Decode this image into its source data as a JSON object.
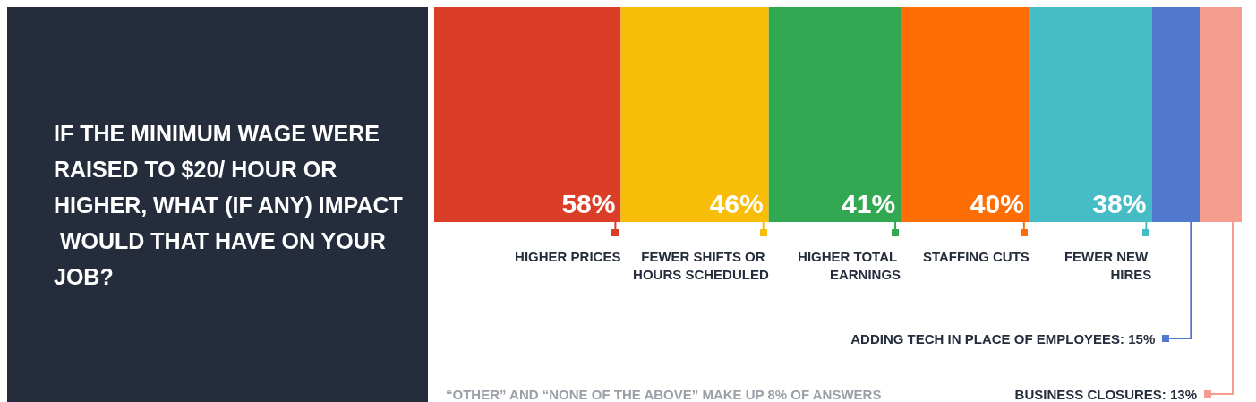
{
  "chart_data": {
    "type": "bar",
    "orientation": "horizontal",
    "stacked": true,
    "title": "IF THE MINIMUM WAGE WERE RAISED TO $20/ HOUR OR HIGHER, WHAT (IF ANY) IMPACT WOULD THAT HAVE ON YOUR JOB?",
    "categories": [
      null
    ],
    "legend": "bottom",
    "series": [
      {
        "name": "HIGHER PRICES",
        "color": "#db3e26",
        "values": [
          58
        ],
        "value_labels": [
          "58%"
        ]
      },
      {
        "name": "FEWER SHIFTS OR HOURS SCHEDULED",
        "color": "#f8bd07",
        "values": [
          46
        ],
        "value_labels": [
          "46%"
        ]
      },
      {
        "name": "HIGHER TOTAL EARNINGS",
        "color": "#32a852",
        "values": [
          41
        ],
        "value_labels": [
          "41%"
        ]
      },
      {
        "name": "STAFFING CUTS",
        "color": "#fe6e04",
        "values": [
          40
        ],
        "value_labels": [
          "40%"
        ]
      },
      {
        "name": "FEWER NEW HIRES",
        "color": "#46bdc6",
        "values": [
          38
        ],
        "value_labels": [
          "38%"
        ]
      },
      {
        "name": "ADDING TECH IN PLACE OF EMPLOYEES:",
        "color": "#5078cc",
        "values": [
          15
        ],
        "value_labels": [
          "15%"
        ]
      },
      {
        "name": "BUSINESS CLOSURES:",
        "color": "#f59e90",
        "values": [
          13
        ],
        "value_labels": [
          "13%"
        ]
      }
    ],
    "annotations": [
      "“OTHER” AND “NONE OF THE ABOVE” MAKE UP 8% OF ANSWERS"
    ]
  }
}
